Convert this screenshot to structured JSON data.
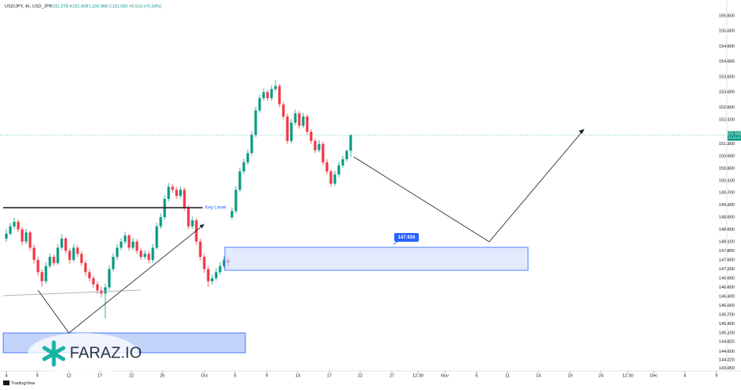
{
  "chart_data": {
    "type": "candlestick",
    "title": "USD/JPY, 4h, USD_JPY",
    "subtitle": "O151.078 H151.608 L150.868 C151.590 +0.513 (+0.34%)",
    "up_color": "#089981",
    "down_color": "#f23645",
    "ohlc": [
      [
        148.2,
        148.5,
        148.1,
        148.36
      ],
      [
        148.36,
        148.72,
        148.3,
        148.6
      ],
      [
        148.6,
        148.88,
        148.5,
        148.75
      ],
      [
        148.75,
        148.82,
        148.4,
        148.5
      ],
      [
        148.5,
        148.58,
        147.98,
        148.1
      ],
      [
        148.1,
        148.52,
        148.02,
        148.4
      ],
      [
        148.4,
        148.46,
        147.8,
        147.9
      ],
      [
        147.9,
        148.0,
        147.38,
        147.5
      ],
      [
        147.5,
        147.6,
        146.98,
        147.1
      ],
      [
        147.1,
        147.2,
        146.62,
        146.8
      ],
      [
        146.8,
        147.42,
        146.72,
        147.3
      ],
      [
        147.3,
        147.72,
        147.22,
        147.6
      ],
      [
        147.6,
        147.68,
        147.3,
        147.4
      ],
      [
        147.4,
        148.02,
        147.34,
        147.9
      ],
      [
        147.9,
        148.34,
        147.82,
        148.2
      ],
      [
        148.2,
        148.26,
        147.7,
        147.8
      ],
      [
        147.8,
        147.88,
        147.38,
        147.5
      ],
      [
        147.5,
        148.02,
        147.44,
        147.9
      ],
      [
        147.9,
        147.98,
        147.6,
        147.7
      ],
      [
        147.7,
        147.78,
        147.3,
        147.4
      ],
      [
        147.4,
        147.48,
        146.98,
        147.1
      ],
      [
        147.1,
        147.2,
        146.8,
        146.9
      ],
      [
        146.9,
        146.98,
        146.58,
        146.7
      ],
      [
        146.7,
        146.8,
        146.38,
        146.5
      ],
      [
        146.5,
        146.62,
        146.28,
        146.4
      ],
      [
        146.4,
        146.72,
        145.58,
        146.6
      ],
      [
        146.6,
        147.32,
        146.52,
        147.2
      ],
      [
        147.2,
        147.72,
        147.12,
        147.6
      ],
      [
        147.6,
        148.02,
        147.5,
        147.9
      ],
      [
        147.9,
        148.22,
        147.82,
        148.1
      ],
      [
        148.1,
        148.42,
        148.02,
        148.3
      ],
      [
        148.3,
        148.36,
        147.8,
        147.9
      ],
      [
        147.9,
        148.22,
        147.84,
        148.1
      ],
      [
        148.1,
        148.18,
        147.7,
        147.8
      ],
      [
        147.8,
        147.9,
        147.5,
        147.6
      ],
      [
        147.6,
        147.82,
        147.52,
        147.7
      ],
      [
        147.7,
        147.78,
        147.4,
        147.5
      ],
      [
        147.5,
        148.02,
        147.42,
        147.9
      ],
      [
        147.9,
        148.72,
        147.84,
        148.6
      ],
      [
        148.6,
        149.02,
        148.52,
        148.9
      ],
      [
        148.9,
        149.62,
        148.82,
        149.5
      ],
      [
        149.5,
        150.02,
        149.42,
        149.9
      ],
      [
        149.9,
        150.0,
        149.7,
        149.8
      ],
      [
        149.8,
        149.9,
        149.5,
        149.6
      ],
      [
        149.6,
        149.92,
        149.52,
        149.8
      ],
      [
        149.8,
        149.88,
        149.1,
        149.2
      ],
      [
        149.2,
        149.3,
        148.5,
        148.6
      ],
      [
        148.6,
        148.92,
        148.52,
        148.8
      ],
      [
        148.8,
        148.88,
        148.0,
        148.1
      ],
      [
        148.1,
        148.2,
        147.48,
        147.6
      ],
      [
        147.6,
        147.7,
        147.08,
        147.2
      ],
      [
        147.2,
        147.3,
        146.62,
        146.8
      ],
      [
        146.8,
        147.02,
        146.7,
        146.9
      ],
      [
        146.9,
        147.22,
        146.82,
        147.1
      ],
      [
        147.1,
        147.42,
        147.02,
        147.3
      ],
      [
        147.3,
        147.62,
        147.22,
        147.5
      ],
      [
        147.5,
        147.58,
        147.28,
        147.4
      ],
      [
        148.9,
        149.22,
        148.82,
        149.1
      ],
      [
        149.1,
        149.92,
        149.02,
        149.8
      ],
      [
        149.8,
        150.52,
        149.72,
        150.4
      ],
      [
        150.4,
        150.82,
        150.32,
        150.7
      ],
      [
        150.7,
        151.12,
        150.62,
        151.0
      ],
      [
        151.0,
        151.72,
        150.92,
        151.6
      ],
      [
        151.6,
        152.52,
        151.52,
        152.4
      ],
      [
        152.4,
        152.92,
        152.32,
        152.8
      ],
      [
        152.8,
        153.12,
        152.72,
        153.0
      ],
      [
        153.0,
        153.08,
        152.7,
        152.8
      ],
      [
        152.8,
        153.22,
        152.72,
        153.1
      ],
      [
        153.1,
        153.4,
        153.02,
        153.2
      ],
      [
        153.2,
        153.28,
        152.5,
        152.6
      ],
      [
        152.6,
        152.68,
        152.1,
        152.2
      ],
      [
        152.2,
        152.3,
        151.3,
        151.4
      ],
      [
        151.4,
        152.12,
        151.32,
        152.0
      ],
      [
        152.0,
        152.42,
        151.92,
        152.3
      ],
      [
        152.3,
        152.38,
        151.8,
        151.9
      ],
      [
        151.9,
        152.32,
        151.82,
        152.2
      ],
      [
        152.2,
        152.28,
        151.6,
        151.7
      ],
      [
        151.7,
        151.78,
        151.3,
        151.4
      ],
      [
        151.4,
        151.48,
        151.0,
        151.1
      ],
      [
        151.1,
        151.42,
        151.02,
        151.3
      ],
      [
        151.3,
        151.38,
        150.6,
        150.7
      ],
      [
        150.7,
        150.8,
        150.3,
        150.4
      ],
      [
        150.4,
        150.48,
        149.9,
        150.0
      ],
      [
        150.0,
        150.42,
        149.92,
        150.3
      ],
      [
        150.3,
        150.72,
        150.22,
        150.6
      ],
      [
        150.6,
        150.92,
        150.52,
        150.8
      ],
      [
        150.8,
        151.12,
        150.72,
        151.078
      ],
      [
        151.078,
        151.608,
        150.868,
        151.59
      ]
    ],
    "xlim": [
      -1.6,
      182
    ],
    "xticks": [
      {
        "value": 0,
        "label": "4"
      },
      {
        "value": 7.8,
        "label": "9"
      },
      {
        "value": 15.8,
        "label": "12"
      },
      {
        "value": 23.6,
        "label": "17"
      },
      {
        "value": 31.6,
        "label": "22"
      },
      {
        "value": 39.4,
        "label": "25"
      },
      {
        "value": 50,
        "label": "Oct"
      },
      {
        "value": 57.8,
        "label": "5"
      },
      {
        "value": 65.8,
        "label": "9"
      },
      {
        "value": 73.6,
        "label": "14"
      },
      {
        "value": 81.6,
        "label": "17"
      },
      {
        "value": 89.4,
        "label": "22"
      },
      {
        "value": 97.4,
        "label": "27"
      },
      {
        "value": 104,
        "label": "12:30"
      },
      {
        "value": 110.8,
        "label": "Nov"
      },
      {
        "value": 118.8,
        "label": "6"
      },
      {
        "value": 126.6,
        "label": "11"
      },
      {
        "value": 134.4,
        "label": "14"
      },
      {
        "value": 142.4,
        "label": "19"
      },
      {
        "value": 150.2,
        "label": "24"
      },
      {
        "value": 157,
        "label": "12:30"
      },
      {
        "value": 163.6,
        "label": "Dec"
      },
      {
        "value": 171.4,
        "label": "4"
      },
      {
        "value": 179.4,
        "label": "9"
      }
    ],
    "ylim": [
      143.86,
      156.02
    ],
    "yticks": [
      {
        "value": 155.5,
        "label": "155.500"
      },
      {
        "value": 155,
        "label": "155.000"
      },
      {
        "value": 154.5,
        "label": "154.500"
      },
      {
        "value": 154,
        "label": "154.000"
      },
      {
        "value": 153.5,
        "label": "153.500"
      },
      {
        "value": 153,
        "label": "153.000"
      },
      {
        "value": 152.5,
        "label": "152.500"
      },
      {
        "value": 152.1,
        "label": "152.100"
      },
      {
        "value": 151.3,
        "label": "151.300"
      },
      {
        "value": 150.9,
        "label": "150.900"
      },
      {
        "value": 150.5,
        "label": "150.500"
      },
      {
        "value": 150.1,
        "label": "150.100"
      },
      {
        "value": 149.7,
        "label": "149.700"
      },
      {
        "value": 149.3,
        "label": "149.300"
      },
      {
        "value": 148.9,
        "label": "148.900"
      },
      {
        "value": 148.5,
        "label": "148.500"
      },
      {
        "value": 148.1,
        "label": "148.100"
      },
      {
        "value": 147.8,
        "label": "147.800"
      },
      {
        "value": 147.5,
        "label": "147.500"
      },
      {
        "value": 147.2,
        "label": "147.200"
      },
      {
        "value": 146.9,
        "label": "146.900"
      },
      {
        "value": 146.6,
        "label": "146.600"
      },
      {
        "value": 146.3,
        "label": "146.300"
      },
      {
        "value": 146,
        "label": "146.000"
      },
      {
        "value": 145.7,
        "label": "145.700"
      },
      {
        "value": 145.4,
        "label": "145.400"
      },
      {
        "value": 145.1,
        "label": "145.100"
      },
      {
        "value": 144.82,
        "label": "144.820"
      },
      {
        "value": 144.5,
        "label": "144.500"
      },
      {
        "value": 144.22,
        "label": "144.220"
      },
      {
        "value": 143.95,
        "label": "143.950"
      }
    ],
    "last_price_label": "151.590",
    "countdown": "03:28:29",
    "annotations": {
      "key_level": "Key Level",
      "zone_price": "147.916",
      "watermark": "FARAZ.IO",
      "brand": "TradingView"
    }
  }
}
